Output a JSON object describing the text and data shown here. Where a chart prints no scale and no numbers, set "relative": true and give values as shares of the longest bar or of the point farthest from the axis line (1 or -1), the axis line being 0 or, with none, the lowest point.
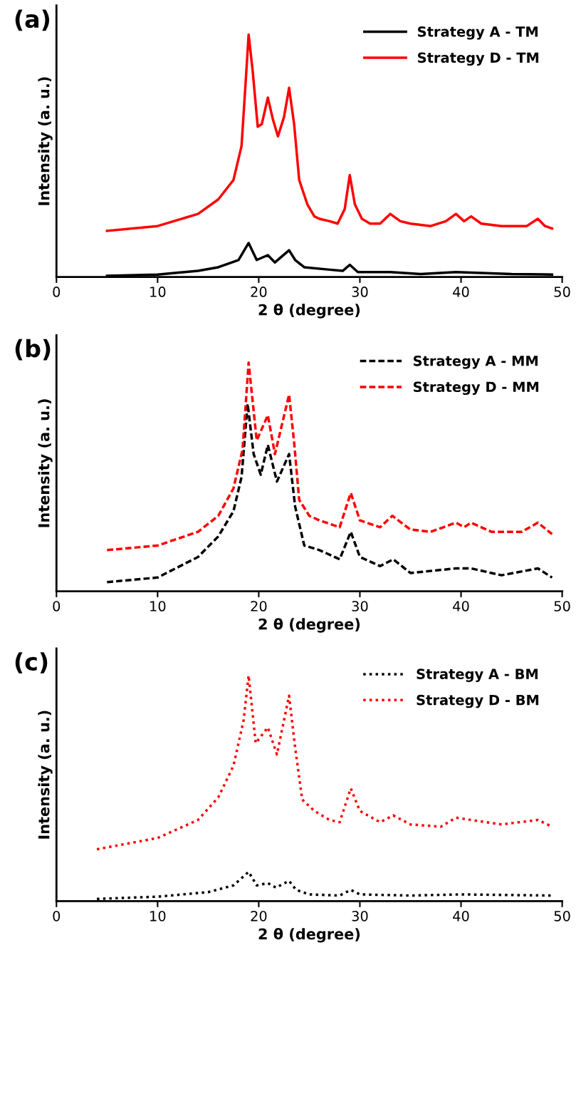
{
  "chart_data": [
    {
      "type": "line",
      "title": "(a)",
      "xlabel": "2 θ (degree)",
      "ylabel": "Intensity (a. u.)",
      "relative": true,
      "xlim": [
        0,
        50
      ],
      "xticks": [
        0,
        10,
        20,
        30,
        40,
        50
      ],
      "tick_labels": "x",
      "legend": "top right",
      "line_style": "solid",
      "grid": false,
      "series": [
        {
          "name": "Strategy A - TM",
          "color": "#000000",
          "x": [
            5,
            10,
            14,
            16,
            18,
            19,
            19.8,
            20.9,
            21.6,
            23,
            23.6,
            24.5,
            27,
            28.3,
            29,
            29.8,
            33,
            36,
            39.5,
            45,
            49
          ],
          "values": [
            0.005,
            0.01,
            0.025,
            0.04,
            0.07,
            0.14,
            0.07,
            0.09,
            0.06,
            0.11,
            0.07,
            0.04,
            0.03,
            0.025,
            0.05,
            0.02,
            0.02,
            0.012,
            0.02,
            0.012,
            0.01
          ]
        },
        {
          "name": "Strategy D - TM",
          "color": "#ff0000",
          "x": [
            5,
            10,
            14,
            16,
            17.5,
            18.3,
            18.7,
            19,
            19.4,
            19.9,
            20.3,
            20.9,
            21.4,
            21.9,
            22.5,
            23,
            23.5,
            24,
            24.8,
            25.5,
            26,
            27,
            27.8,
            28.5,
            29,
            29.5,
            30.2,
            31,
            32,
            33,
            34,
            35,
            37,
            38.5,
            39.5,
            40.3,
            41,
            42,
            44,
            46.5,
            47.6,
            48.3,
            49
          ],
          "values": [
            0.19,
            0.21,
            0.26,
            0.32,
            0.4,
            0.54,
            0.8,
            1.0,
            0.85,
            0.62,
            0.63,
            0.74,
            0.65,
            0.58,
            0.66,
            0.78,
            0.63,
            0.4,
            0.3,
            0.25,
            0.24,
            0.23,
            0.22,
            0.28,
            0.42,
            0.3,
            0.24,
            0.22,
            0.22,
            0.26,
            0.23,
            0.22,
            0.21,
            0.23,
            0.26,
            0.23,
            0.25,
            0.22,
            0.21,
            0.21,
            0.24,
            0.21,
            0.2
          ]
        }
      ]
    },
    {
      "type": "line",
      "title": "(b)",
      "xlabel": "2 θ (degree)",
      "ylabel": "Intensity (a. u.)",
      "relative": true,
      "xlim": [
        0,
        50
      ],
      "xticks": [
        0,
        10,
        20,
        30,
        40,
        50
      ],
      "tick_labels": "x",
      "legend": "top right",
      "line_style": "dashed",
      "grid": false,
      "series": [
        {
          "name": "Strategy A - MM",
          "color": "#000000",
          "x": [
            5,
            10,
            14,
            16,
            17.5,
            18.3,
            18.9,
            19.5,
            20.2,
            20.9,
            21.8,
            23,
            23.6,
            24.5,
            26,
            28,
            29.1,
            30,
            32,
            33.3,
            35,
            39.5,
            41,
            44,
            47.6,
            49
          ],
          "values": [
            0.04,
            0.06,
            0.15,
            0.24,
            0.35,
            0.5,
            0.82,
            0.6,
            0.51,
            0.64,
            0.48,
            0.6,
            0.37,
            0.2,
            0.18,
            0.14,
            0.26,
            0.15,
            0.11,
            0.14,
            0.08,
            0.1,
            0.1,
            0.07,
            0.1,
            0.06
          ]
        },
        {
          "name": "Strategy D - MM",
          "color": "#ff0000",
          "x": [
            5,
            10,
            14,
            16,
            17.5,
            18.4,
            19,
            19.8,
            20.9,
            21.6,
            23,
            23.5,
            24,
            25,
            26,
            28,
            29.1,
            30,
            32,
            33.2,
            35,
            37,
            39.5,
            40.3,
            41,
            43,
            46,
            47.6,
            49
          ],
          "values": [
            0.18,
            0.2,
            0.26,
            0.33,
            0.45,
            0.62,
            1.0,
            0.66,
            0.77,
            0.6,
            0.86,
            0.65,
            0.4,
            0.33,
            0.31,
            0.28,
            0.43,
            0.31,
            0.28,
            0.33,
            0.27,
            0.26,
            0.3,
            0.28,
            0.3,
            0.26,
            0.26,
            0.3,
            0.25
          ]
        }
      ]
    },
    {
      "type": "line",
      "title": "(c)",
      "xlabel": "2 θ (degree)",
      "ylabel": "Intensity (a. u.)",
      "relative": true,
      "xlim": [
        0,
        50
      ],
      "xticks": [
        0,
        10,
        20,
        30,
        40,
        50
      ],
      "tick_labels": "x",
      "legend": "top right",
      "line_style": "dotted",
      "grid": false,
      "series": [
        {
          "name": "Strategy A - BM",
          "color": "#000000",
          "x": [
            4,
            10,
            15,
            17.5,
            19,
            19.8,
            20.9,
            21.7,
            23,
            23.7,
            25,
            28,
            29.1,
            30,
            35,
            40,
            49
          ],
          "values": [
            0.01,
            0.02,
            0.04,
            0.07,
            0.13,
            0.07,
            0.08,
            0.06,
            0.09,
            0.05,
            0.03,
            0.025,
            0.05,
            0.03,
            0.025,
            0.03,
            0.025
          ]
        },
        {
          "name": "Strategy D - BM",
          "color": "#ff0000",
          "x": [
            4,
            10,
            14,
            16,
            17.5,
            18.5,
            19,
            19.7,
            20.9,
            21.8,
            23,
            23.6,
            24.3,
            25.5,
            27,
            28,
            29.1,
            30,
            32,
            33.3,
            35,
            38,
            39.5,
            41,
            44,
            47.6,
            49
          ],
          "values": [
            0.23,
            0.28,
            0.36,
            0.46,
            0.6,
            0.8,
            1.0,
            0.7,
            0.77,
            0.65,
            0.91,
            0.68,
            0.45,
            0.4,
            0.36,
            0.35,
            0.5,
            0.4,
            0.35,
            0.38,
            0.34,
            0.33,
            0.37,
            0.36,
            0.34,
            0.36,
            0.33
          ]
        }
      ]
    }
  ]
}
